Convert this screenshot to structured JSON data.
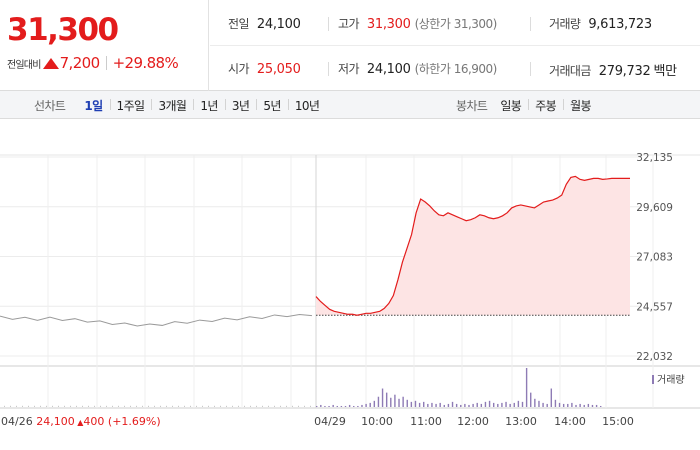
{
  "quote": {
    "price": "31,300",
    "change_label": "전일대비",
    "change_value": "7,200",
    "change_rate": "+29.88%",
    "prev_close": {
      "label": "전일",
      "value": "24,100"
    },
    "high": {
      "label": "고가",
      "value": "31,300",
      "limit": "(상한가 31,300)"
    },
    "volume": {
      "label": "거래량",
      "value": "9,613,723"
    },
    "open": {
      "label": "시가",
      "value": "25,050"
    },
    "low": {
      "label": "저가",
      "value": "24,100",
      "limit": "(하한가 16,900)"
    },
    "trade_value": {
      "label": "거래대금",
      "value": "279,732",
      "unit": "백만"
    }
  },
  "tabs": {
    "line_title": "선차트",
    "line_periods": [
      "1일",
      "1주일",
      "3개월",
      "1년",
      "3년",
      "5년",
      "10년"
    ],
    "active_period": "1일",
    "candle_title": "봉차트",
    "candle_periods": [
      "일봉",
      "주봉",
      "월봉"
    ]
  },
  "colors": {
    "up": "#e31c1c",
    "active_tab": "#1f3fb3",
    "prev_day_line": "#9a9a9a",
    "volume_bar": "#8e7bb5",
    "area_fill": "#fde4e4"
  },
  "chart_data": {
    "type": "line",
    "y_ticks": [
      "32,135",
      "29,609",
      "27,083",
      "24,557",
      "22,032"
    ],
    "ylim": [
      22032,
      32135
    ],
    "reference_price": 24100,
    "x_labels": [
      "04/29",
      "10:00",
      "11:00",
      "12:00",
      "13:00",
      "14:00",
      "15:00"
    ],
    "prev_day": {
      "date_label": "04/26",
      "close": "24,100",
      "change": "400",
      "change_rate": "(+1.69%)",
      "prices": [
        24000,
        23960,
        23940,
        23910,
        23950,
        23900,
        23870,
        23820,
        23760,
        23700,
        23650,
        23620,
        23600,
        23650,
        23720,
        23760,
        23800,
        23850,
        23900,
        23930,
        23970,
        24000,
        24060,
        24100,
        24080,
        24150
      ]
    },
    "series": [
      {
        "prices": [
          25050,
          24800,
          24600,
          24400,
          24300,
          24250,
          24200,
          24150,
          24150,
          24100,
          24150,
          24200,
          24200,
          24250,
          24300,
          24450,
          24700,
          25100,
          25900,
          26800,
          27500,
          28200,
          29300,
          30000,
          29850,
          29650,
          29400,
          29200,
          29150,
          29300,
          29200,
          29100,
          29000,
          28900,
          28950,
          29050,
          29200,
          29150,
          29050,
          29000,
          29050,
          29150,
          29300,
          29550,
          29650,
          29700,
          29650,
          29600,
          29550,
          29700,
          29850,
          29900,
          29950,
          30050,
          30200,
          30750,
          31100,
          31150,
          31000,
          30950,
          31000,
          31050,
          31050,
          31000,
          31020,
          31050,
          31050,
          31050,
          31050,
          31050
        ]
      }
    ],
    "volume_legend": "거래량",
    "volume": [
      1,
      2,
      1,
      1,
      2,
      1,
      1,
      1,
      2,
      1,
      1,
      2,
      3,
      4,
      6,
      10,
      18,
      14,
      9,
      12,
      8,
      10,
      7,
      5,
      6,
      4,
      5,
      3,
      4,
      3,
      4,
      2,
      3,
      5,
      3,
      2,
      3,
      2,
      3,
      4,
      3,
      5,
      6,
      4,
      3,
      4,
      5,
      3,
      4,
      6,
      5,
      38,
      14,
      8,
      6,
      4,
      3,
      18,
      7,
      4,
      3,
      3,
      4,
      2,
      3,
      2,
      3,
      2,
      2,
      1
    ]
  }
}
